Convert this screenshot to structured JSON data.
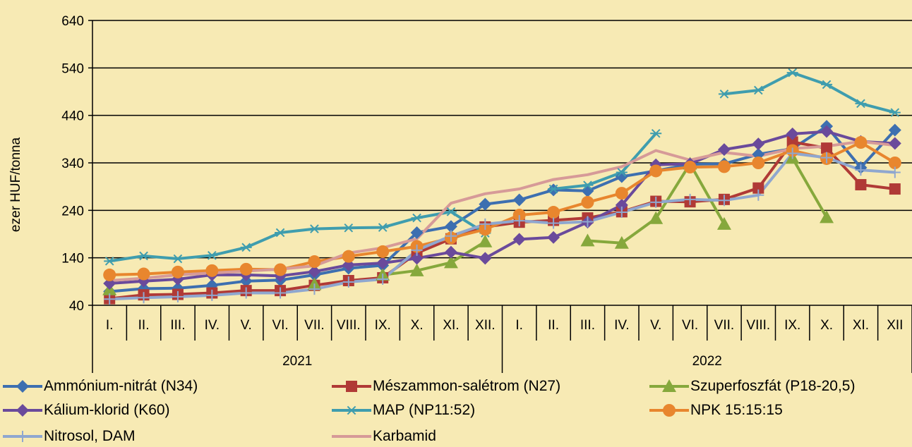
{
  "chart_data": {
    "type": "line",
    "ylabel": "ezer HUF/tonna",
    "xlabel": "",
    "ylim": [
      40,
      640
    ],
    "yticks": [
      40,
      140,
      240,
      340,
      440,
      540,
      640
    ],
    "grid": true,
    "legend_position": "bottom",
    "months": [
      "I.",
      "II.",
      "III.",
      "IV.",
      "V.",
      "VI.",
      "VII.",
      "VIII.",
      "IX.",
      "X.",
      "XI.",
      "XII.",
      "I.",
      "II.",
      "III.",
      "IV.",
      "V.",
      "VI.",
      "VII.",
      "VIII.",
      "IX.",
      "X.",
      "XI.",
      "XII"
    ],
    "years": [
      {
        "label": "2021",
        "span": [
          0,
          11
        ]
      },
      {
        "label": "2022",
        "span": [
          12,
          23
        ]
      }
    ],
    "series": [
      {
        "name": "Ammónium-nitrát (N34)",
        "color": "#3d6fb0",
        "marker": "diamond",
        "values": [
          69,
          75,
          76,
          82,
          91,
          93,
          104,
          118,
          124,
          193,
          206,
          253,
          262,
          283,
          281,
          311,
          323,
          337,
          338,
          358,
          370,
          417,
          330,
          409
        ]
      },
      {
        "name": "Mészammon-salétrom (N27)",
        "color": "#b03a36",
        "marker": "square",
        "values": [
          54,
          62,
          63,
          66,
          71,
          71,
          82,
          92,
          98,
          150,
          180,
          205,
          215,
          219,
          224,
          237,
          259,
          258,
          263,
          287,
          384,
          371,
          294,
          285
        ]
      },
      {
        "name": "Szuperfoszfát (P18-20,5)",
        "color": "#86a83c",
        "marker": "triangle",
        "values": [
          73,
          null,
          null,
          null,
          null,
          null,
          84,
          null,
          104,
          113,
          130,
          174,
          null,
          null,
          176,
          171,
          223,
          338,
          211,
          null,
          350,
          225,
          null,
          null
        ]
      },
      {
        "name": "Kálium-klorid (K60)",
        "color": "#6a4a9b",
        "marker": "diamond",
        "values": [
          86,
          91,
          95,
          104,
          104,
          102,
          111,
          125,
          129,
          139,
          152,
          139,
          179,
          183,
          215,
          251,
          336,
          338,
          368,
          380,
          401,
          406,
          385,
          381
        ]
      },
      {
        "name": "MAP (NP11:52)",
        "color": "#3f9dae",
        "marker": "asterisk",
        "values": [
          133,
          144,
          138,
          145,
          162,
          193,
          201,
          203,
          204,
          224,
          237,
          192,
          null,
          285,
          293,
          320,
          402,
          null,
          485,
          493,
          530,
          505,
          465,
          446
        ]
      },
      {
        "name": "NPK 15:15:15",
        "color": "#e8862e",
        "marker": "circle",
        "values": [
          104,
          106,
          110,
          113,
          116,
          115,
          132,
          143,
          153,
          164,
          182,
          200,
          230,
          236,
          257,
          276,
          323,
          331,
          332,
          340,
          366,
          349,
          383,
          340
        ]
      },
      {
        "name": "Nitrosol, DAM",
        "color": "#8fa7cf",
        "marker": "plus",
        "values": [
          53,
          56,
          58,
          61,
          66,
          66,
          74,
          89,
          95,
          156,
          186,
          211,
          218,
          213,
          216,
          236,
          257,
          263,
          261,
          272,
          360,
          351,
          325,
          320
        ]
      },
      {
        "name": "Karbamid",
        "color": "#d69a98",
        "marker": "none",
        "values": [
          92,
          97,
          104,
          108,
          112,
          116,
          123,
          150,
          161,
          180,
          255,
          275,
          285,
          305,
          315,
          332,
          366,
          346,
          362,
          354,
          370,
          375,
          385,
          377
        ]
      }
    ]
  }
}
